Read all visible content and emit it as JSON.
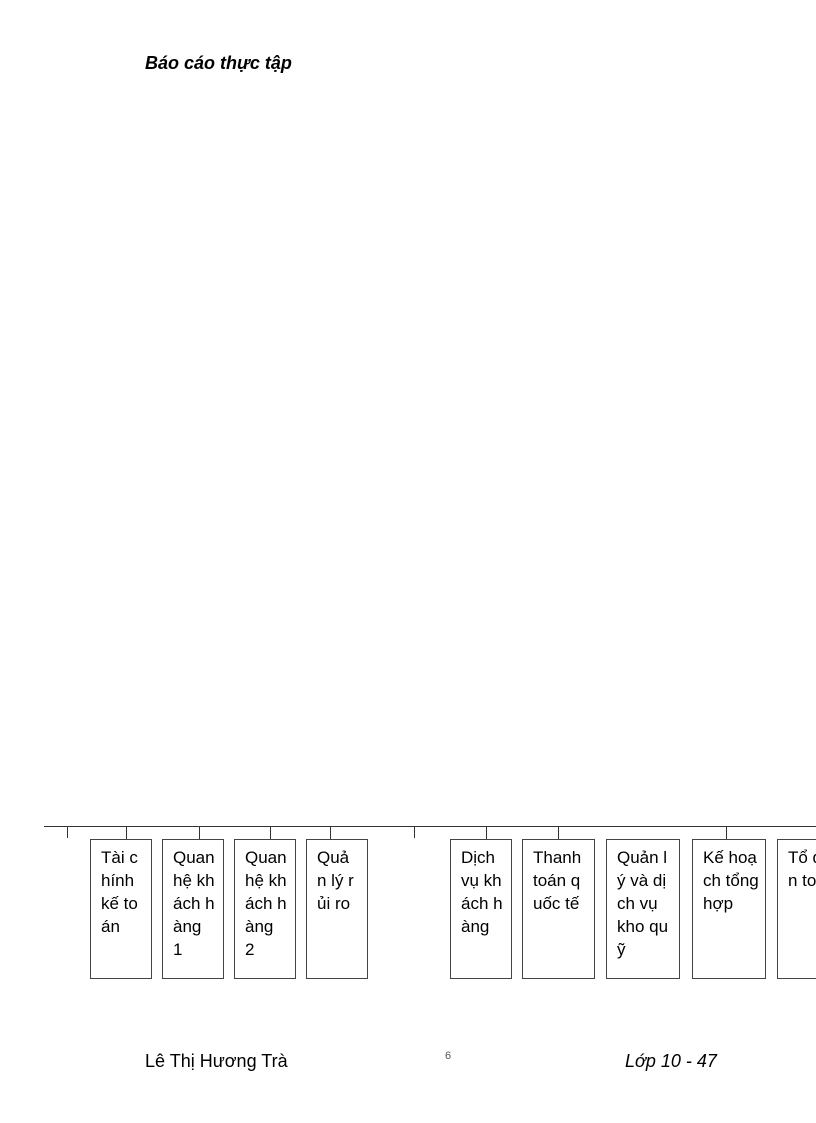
{
  "header": {
    "title": "Báo cáo thực tập"
  },
  "org_chart": {
    "boxes": [
      "Tài chính kế toán",
      "Quan hệ khách hàng 1",
      "Quan hệ khách hàng 2",
      "Quản lý rủi ro",
      "Dịch vụ khách hàng",
      "Thanh toán quốc tế",
      "Quản lý và dịch vụ kho quỹ",
      "Kế hoạch tổng hợp",
      "Tổ điện toán"
    ]
  },
  "footer": {
    "author": "Lê Thị Hương Trà",
    "page": "6",
    "class": "Lớp 10 - 47"
  }
}
